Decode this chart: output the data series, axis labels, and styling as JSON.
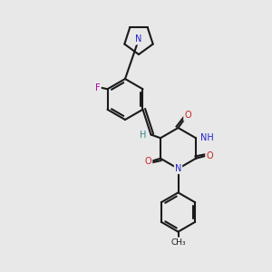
{
  "bg_color": "#e8e8e8",
  "figsize": [
    3.0,
    3.0
  ],
  "dpi": 100,
  "bond_color": "#1a1a1a",
  "bond_lw": 1.5,
  "atom_colors": {
    "N": "#2222cc",
    "O": "#cc2222",
    "F": "#aa00aa",
    "H": "#338888",
    "C": "#1a1a1a"
  }
}
